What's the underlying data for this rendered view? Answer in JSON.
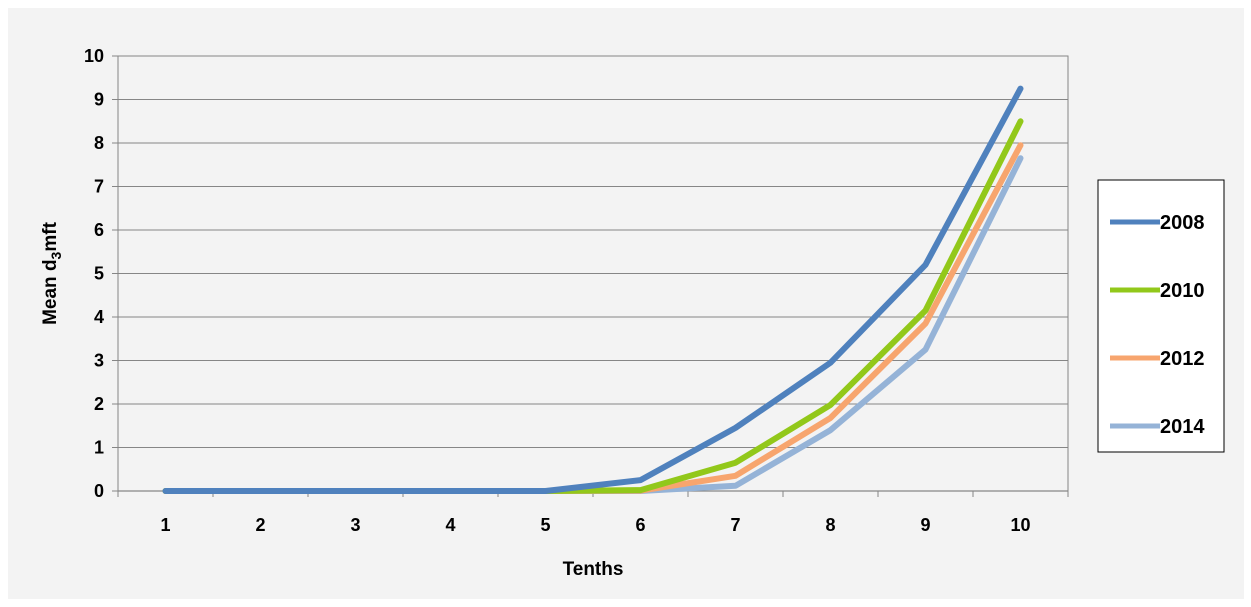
{
  "chart_data": {
    "type": "line",
    "xlabel": "Tenths",
    "ylabel": "Mean d3mft",
    "ylabel_parts": {
      "before": "Mean d",
      "subscript": "3",
      "after": "mft"
    },
    "categories": [
      "1",
      "2",
      "3",
      "4",
      "5",
      "6",
      "7",
      "8",
      "9",
      "10"
    ],
    "ylim": [
      0,
      10
    ],
    "yticks": [
      "0",
      "1",
      "2",
      "3",
      "4",
      "5",
      "6",
      "7",
      "8",
      "9",
      "10"
    ],
    "grid": "horizontal",
    "legend_position": "right",
    "series": [
      {
        "name": "2008",
        "color": "#4f81bd",
        "values": [
          0,
          0,
          0,
          0,
          0,
          0.25,
          1.45,
          2.95,
          5.2,
          9.25
        ]
      },
      {
        "name": "2010",
        "color": "#92c81a",
        "values": [
          0,
          0,
          0,
          0,
          0,
          0.02,
          0.65,
          1.98,
          4.15,
          8.5
        ]
      },
      {
        "name": "2012",
        "color": "#f7a56e",
        "values": [
          0,
          0,
          0,
          0,
          0,
          0.01,
          0.35,
          1.68,
          3.85,
          7.95
        ]
      },
      {
        "name": "2014",
        "color": "#95b3d7",
        "values": [
          0,
          0,
          0,
          0,
          0,
          0,
          0.12,
          1.4,
          3.25,
          7.65
        ]
      }
    ]
  }
}
